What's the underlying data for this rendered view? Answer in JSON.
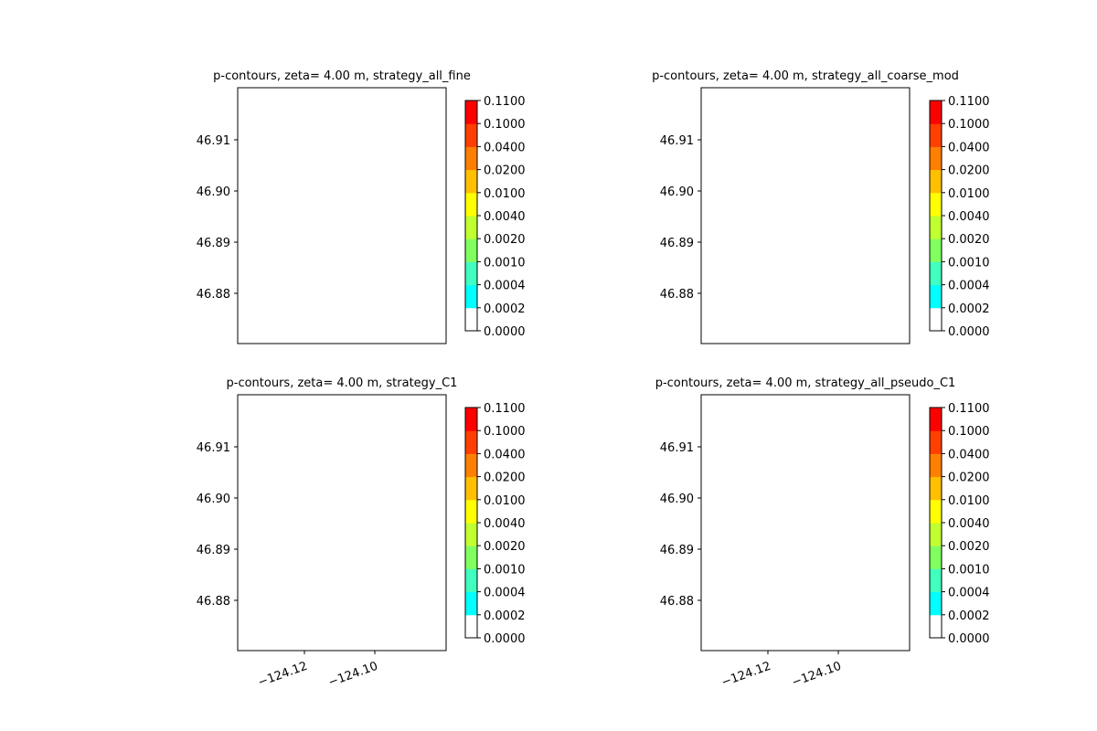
{
  "chart_data": [
    {
      "type": "heatmap",
      "title": "p-contours, zeta= 4.00 m, strategy_all_fine",
      "yticks": [
        "46.88",
        "46.89",
        "46.90",
        "46.91"
      ],
      "xticks": [],
      "colorbar_levels": [
        "0.0000",
        "0.0002",
        "0.0004",
        "0.0010",
        "0.0020",
        "0.0040",
        "0.0100",
        "0.0200",
        "0.0400",
        "0.1000",
        "0.1100"
      ]
    },
    {
      "type": "heatmap",
      "title": "p-contours, zeta= 4.00 m, strategy_all_coarse_mod",
      "yticks": [
        "46.88",
        "46.89",
        "46.90",
        "46.91"
      ],
      "xticks": [],
      "colorbar_levels": [
        "0.0000",
        "0.0002",
        "0.0004",
        "0.0010",
        "0.0020",
        "0.0040",
        "0.0100",
        "0.0200",
        "0.0400",
        "0.1000",
        "0.1100"
      ]
    },
    {
      "type": "heatmap",
      "title": "p-contours, zeta= 4.00 m, strategy_C1",
      "yticks": [
        "46.88",
        "46.89",
        "46.90",
        "46.91"
      ],
      "xticks": [
        "−124.12",
        "−124.10"
      ],
      "colorbar_levels": [
        "0.0000",
        "0.0002",
        "0.0004",
        "0.0010",
        "0.0020",
        "0.0040",
        "0.0100",
        "0.0200",
        "0.0400",
        "0.1000",
        "0.1100"
      ]
    },
    {
      "type": "heatmap",
      "title": "p-contours, zeta= 4.00 m, strategy_all_pseudo_C1",
      "yticks": [
        "46.88",
        "46.89",
        "46.90",
        "46.91"
      ],
      "xticks": [
        "−124.12",
        "−124.10"
      ],
      "colorbar_levels": [
        "0.0000",
        "0.0002",
        "0.0004",
        "0.0010",
        "0.0020",
        "0.0040",
        "0.0100",
        "0.0200",
        "0.0400",
        "0.1000",
        "0.1100"
      ]
    }
  ],
  "colorbar_colors": [
    "#ffffff",
    "#00ffff",
    "#40ffc0",
    "#80ff60",
    "#c0ff30",
    "#ffff00",
    "#ffc000",
    "#ff8000",
    "#ff4000",
    "#ff0000"
  ],
  "map_colors": {
    "coast_line": "#000000",
    "cyan": "#00ffff",
    "aqua_green": "#40ffc0",
    "green": "#80ff60",
    "lime": "#c0ff30"
  }
}
